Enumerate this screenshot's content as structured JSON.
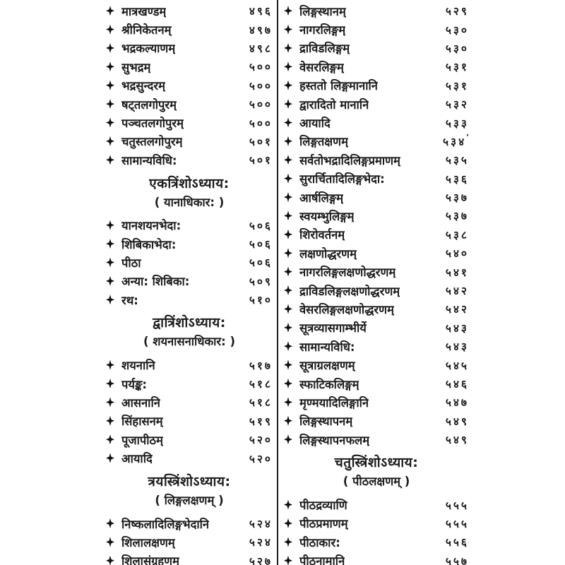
{
  "page": {
    "background": "#ffffff",
    "text_color": "#1b1b1b",
    "divider_color": "#1f1f1f",
    "bullet_icon": "four-pointed-star",
    "columns": [
      {
        "side": "left",
        "blocks": [
          {
            "type": "entries",
            "items": [
              {
                "label": "मात्रखण्डम्",
                "page": "४९६"
              },
              {
                "label": "श्रीनिकेतनम्",
                "page": "४९७"
              },
              {
                "label": "भद्रकल्याणम्",
                "page": "४९८"
              },
              {
                "label": "सुभद्रम्",
                "page": "५००"
              },
              {
                "label": "भद्रसुन्दरम्",
                "page": "५००"
              },
              {
                "label": "षट्तलगोपुरम्",
                "page": "५००"
              },
              {
                "label": "पञ्चतलगोपुरम्",
                "page": "५००"
              },
              {
                "label": "चतुस्तलगोपुरम्",
                "page": "५०१"
              },
              {
                "label": "सामान्यविधि:",
                "page": "५०१"
              }
            ]
          },
          {
            "type": "section",
            "title": "एकत्रिंशोऽध्याय:",
            "subtitle": "( यानाधिकार: )"
          },
          {
            "type": "entries",
            "items": [
              {
                "label": "यानशयनभेदा:",
                "page": "५०६"
              },
              {
                "label": "शिबिकाभेदा:",
                "page": "५०६"
              },
              {
                "label": "पीठा",
                "page": "५०६"
              },
              {
                "label": "अन्या: शिबिका:",
                "page": "५०९"
              },
              {
                "label": "रथ:",
                "page": "५१०"
              }
            ]
          },
          {
            "type": "section",
            "title": "द्वात्रिंशोऽध्याय:",
            "subtitle": "( शयनासनाधिकार: )"
          },
          {
            "type": "entries",
            "items": [
              {
                "label": "शयनानि",
                "page": "५१७"
              },
              {
                "label": "पर्यङ्क:",
                "page": "५१८"
              },
              {
                "label": "आसनानि",
                "page": "५१८"
              },
              {
                "label": "सिंहासनम्",
                "page": "५१९"
              },
              {
                "label": "पूजापीठम्",
                "page": "५२०"
              },
              {
                "label": "आयादि",
                "page": "५२०"
              }
            ]
          },
          {
            "type": "section",
            "title": "त्रयस्त्रिंशोऽध्याय:",
            "subtitle": "( लिङ्गलक्षणम् )"
          },
          {
            "type": "entries",
            "items": [
              {
                "label": "निष्कलादिलिङ्गभेदानि",
                "page": "५२४"
              },
              {
                "label": "शिलालक्षणम्",
                "page": "५२४"
              },
              {
                "label": "शिलासंग्रहणम्",
                "page": "५२७"
              }
            ]
          }
        ]
      },
      {
        "side": "right",
        "blocks": [
          {
            "type": "entries",
            "items": [
              {
                "label": "लिङ्गस्थानम्",
                "page": "५२९"
              },
              {
                "label": "नागरलिङ्गम्",
                "page": "५३०"
              },
              {
                "label": "द्राविडलिङ्गम्",
                "page": "५३०"
              },
              {
                "label": "वेसरलिङ्गम्",
                "page": "५३१"
              },
              {
                "label": "हस्ततो लिङ्गमानानि",
                "page": "५३१"
              },
              {
                "label": "द्वारादितो मानानि",
                "page": "५३२"
              },
              {
                "label": "आयादि",
                "page": "५३३"
              },
              {
                "label": "लिङ्गतक्षणम्",
                "page": "५३४",
                "page_mark": "ʼ"
              },
              {
                "label": "सर्वतोभद्रादिलिङ्गप्रमाणम्",
                "page": "५३५"
              },
              {
                "label": "सुरार्चितादिलिङ्गभेदा:",
                "page": "५३६"
              },
              {
                "label": "आर्षलिङ्गम्",
                "page": "५३७"
              },
              {
                "label": "स्वयम्भुलिङ्गम्",
                "page": "५३७"
              },
              {
                "label": "शिरोवर्तनम्",
                "page": "५३८"
              },
              {
                "label": "लक्षणोद्धरणम्",
                "page": "५४०"
              },
              {
                "label": "नागरलिङ्गलक्षणोद्धरणम्",
                "page": "५४१"
              },
              {
                "label": "द्राविडलिङ्गलक्षणोद्धरणम्",
                "page": "५४२"
              },
              {
                "label": "वेसरलिङ्गलक्षणोद्धरणम्",
                "page": "५४२"
              },
              {
                "label": "सूत्रव्यासगाम्भीर्ये",
                "page": "५४३"
              },
              {
                "label": "सामान्यविधि:",
                "page": "५४३"
              },
              {
                "label": "सूत्राग्रलक्षणम्",
                "page": "५४५"
              },
              {
                "label": "स्फाटिकलिङ्गम्",
                "page": "५४६"
              },
              {
                "label": "मृण्मयादिलिङ्गानि",
                "page": "५४७"
              },
              {
                "label": "लिङ्गस्थापनम्",
                "page": "५४९"
              },
              {
                "label": "लिङ्गस्थापनफलम्",
                "page": "५४९"
              }
            ]
          },
          {
            "type": "section",
            "title": "चतुस्त्रिंशोऽध्याय:",
            "subtitle": "( पीठलक्षणम् )"
          },
          {
            "type": "entries",
            "items": [
              {
                "label": "पीठद्रव्याणि",
                "page": "५५५"
              },
              {
                "label": "पीठप्रमाणम्",
                "page": "५५५"
              },
              {
                "label": "पीठाकार:",
                "page": "५५६"
              },
              {
                "label": "पीठनामानि",
                "page": "५५७"
              }
            ]
          }
        ]
      }
    ]
  }
}
